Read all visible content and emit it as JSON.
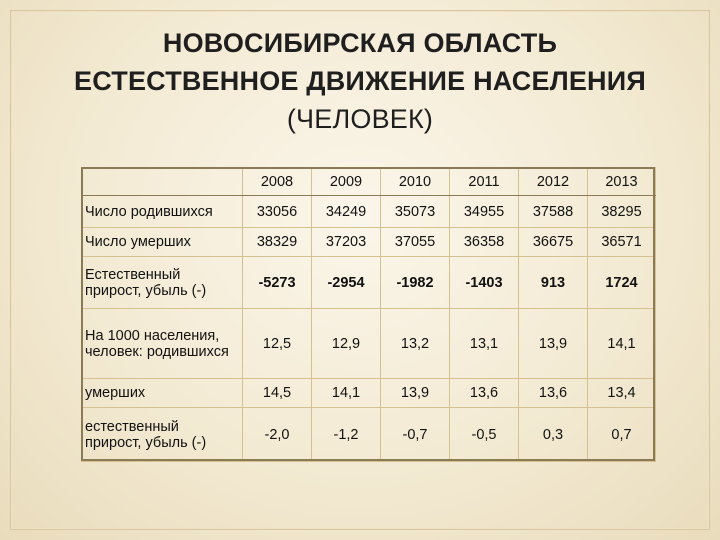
{
  "title": {
    "line1": "НОВОСИБИРСКАЯ ОБЛАСТЬ",
    "line2": "ЕСТЕСТВЕННОЕ ДВИЖЕНИЕ НАСЕЛЕНИЯ",
    "line3": "(ЧЕЛОВЕК)"
  },
  "table": {
    "years": [
      "2008",
      "2009",
      "2010",
      "2011",
      "2012",
      "2013"
    ],
    "rows": [
      {
        "label": "Число родившихся",
        "values": [
          "33056",
          "34249",
          "35073",
          "34955",
          "37588",
          "38295"
        ]
      },
      {
        "label": "Число умерших",
        "values": [
          "38329",
          "37203",
          "37055",
          "36358",
          "36675",
          "36571"
        ]
      },
      {
        "label": "Естественный прирост, убыль (-)",
        "values": [
          "-5273",
          "-2954",
          "-1982",
          "-1403",
          "913",
          "1724"
        ]
      },
      {
        "label": "На 1000 населения, человек: родившихся",
        "values": [
          "12,5",
          "12,9",
          "13,2",
          "13,1",
          "13,9",
          "14,1"
        ]
      },
      {
        "label": "умерших",
        "values": [
          "14,5",
          "14,1",
          "13,9",
          "13,6",
          "13,6",
          "13,4"
        ]
      },
      {
        "label": "естественный прирост, убыль (-)",
        "values": [
          "-2,0",
          "-1,2",
          "-0,7",
          "-0,5",
          "0,3",
          "0,7"
        ]
      }
    ]
  },
  "colors": {
    "background": "#f3ead3",
    "border": "#8a7a55",
    "grid": "#d4c18f",
    "text": "#111111"
  }
}
